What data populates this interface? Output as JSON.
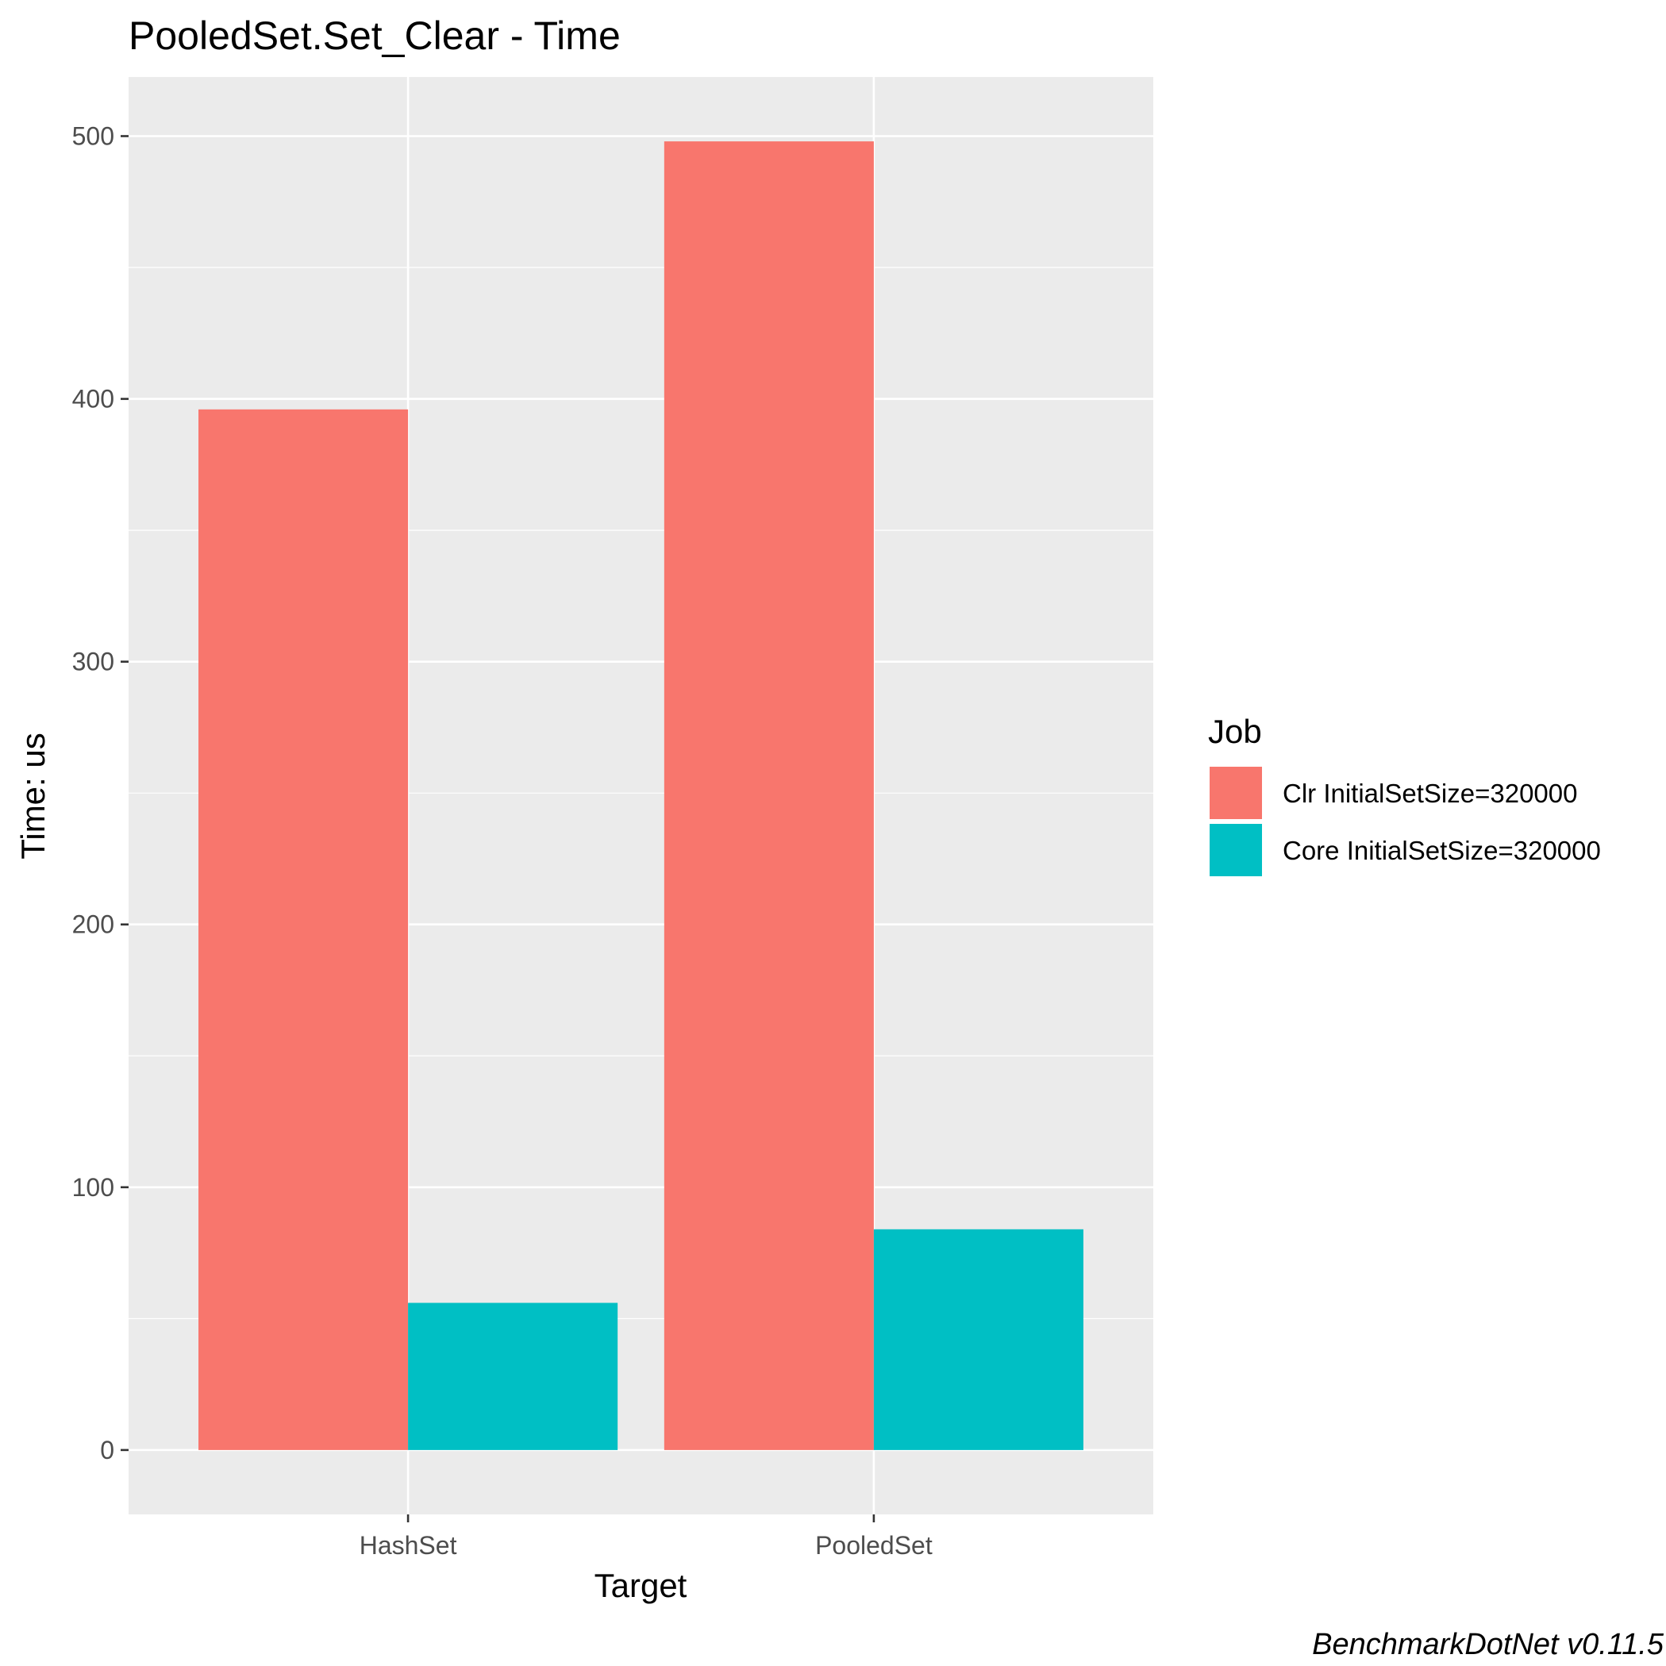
{
  "chart_data": {
    "type": "bar",
    "title": "PooledSet.Set_Clear - Time",
    "xlabel": "Target",
    "ylabel": "Time: us",
    "categories": [
      "HashSet",
      "PooledSet"
    ],
    "series": [
      {
        "name": "Clr InitialSetSize=320000",
        "values": [
          396,
          498
        ],
        "color": "#F8766D"
      },
      {
        "name": "Core InitialSetSize=320000",
        "values": [
          56,
          84
        ],
        "color": "#00BFC4"
      }
    ],
    "ylim": [
      -24.5,
      522.5
    ],
    "yticks": [
      0,
      100,
      200,
      300,
      400,
      500
    ],
    "legend_title": "Job",
    "legend_position": "right",
    "caption": "BenchmarkDotNet v0.11.5",
    "panel_background": "#EBEBEB",
    "grid": true
  }
}
